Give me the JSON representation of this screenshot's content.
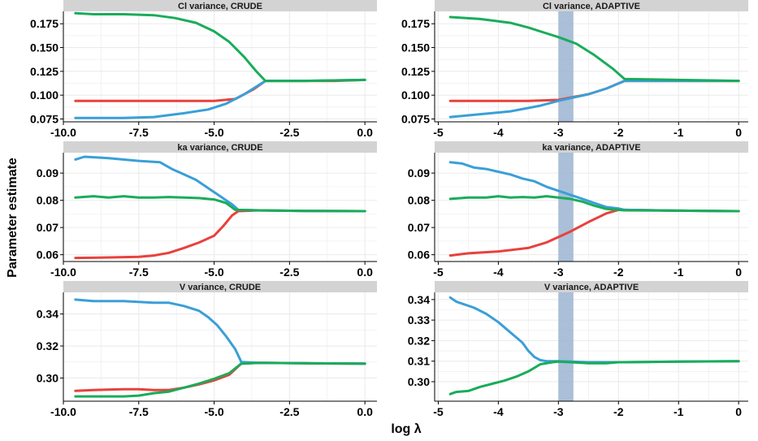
{
  "figure": {
    "xlabel": "log λ",
    "ylabel": "Parameter estimate"
  },
  "colors": {
    "red": "#e8413c",
    "blue": "#3a9fd8",
    "green": "#1aac5a",
    "band": "#9bb4d1",
    "strip": "#d3d3d3",
    "grid": "#ebebeb"
  },
  "chart_data": [
    {
      "type": "line",
      "title": "Cl variance, CRUDE",
      "xlim": [
        -10,
        0.4
      ],
      "ylim": [
        0.072,
        0.188
      ],
      "xticks": [
        -10,
        -7.5,
        -5,
        -2.5,
        0
      ],
      "xtick_labels": [
        "-10.0",
        "-7.5",
        "-5.0",
        "-2.5",
        "0.0"
      ],
      "yticks": [
        0.075,
        0.1,
        0.125,
        0.15,
        0.175
      ],
      "ytick_labels": [
        "0.075",
        "0.100",
        "0.125",
        "0.150",
        "0.175"
      ],
      "highlight": null,
      "series": [
        {
          "color": "red",
          "x": [
            -9.6,
            -8,
            -6.5,
            -5,
            -4.3,
            -3.7,
            -3.3,
            -2,
            -1,
            0
          ],
          "y": [
            0.094,
            0.094,
            0.094,
            0.094,
            0.096,
            0.106,
            0.115,
            0.115,
            0.115,
            0.116
          ]
        },
        {
          "color": "blue",
          "x": [
            -9.6,
            -8,
            -7,
            -6,
            -5.2,
            -4.6,
            -4,
            -3.6,
            -3.3,
            -2,
            0
          ],
          "y": [
            0.076,
            0.076,
            0.077,
            0.081,
            0.085,
            0.091,
            0.101,
            0.109,
            0.115,
            0.115,
            0.116
          ]
        },
        {
          "color": "green",
          "x": [
            -9.6,
            -9,
            -8,
            -7,
            -6.3,
            -5.6,
            -5,
            -4.5,
            -4,
            -3.6,
            -3.3,
            -2,
            0
          ],
          "y": [
            0.186,
            0.185,
            0.185,
            0.184,
            0.181,
            0.176,
            0.167,
            0.156,
            0.14,
            0.125,
            0.115,
            0.115,
            0.116
          ]
        }
      ]
    },
    {
      "type": "line",
      "title": "Cl variance, ADAPTIVE",
      "xlim": [
        -5.06,
        0.16
      ],
      "ylim": [
        0.072,
        0.188
      ],
      "xticks": [
        -5,
        -4,
        -3,
        -2,
        -1,
        0
      ],
      "xtick_labels": [
        "-5",
        "-4",
        "-3",
        "-2",
        "-1",
        "0"
      ],
      "yticks": [
        0.075,
        0.1,
        0.125,
        0.15,
        0.175
      ],
      "ytick_labels": [
        "0.075",
        "0.100",
        "0.125",
        "0.150",
        "0.175"
      ],
      "highlight": [
        -3,
        -2.75
      ],
      "series": [
        {
          "color": "red",
          "x": [
            -4.8,
            -4,
            -3.5,
            -3,
            -2.5,
            -2.2,
            -1.9,
            -1,
            0
          ],
          "y": [
            0.094,
            0.094,
            0.094,
            0.095,
            0.101,
            0.107,
            0.115,
            0.115,
            0.115
          ]
        },
        {
          "color": "blue",
          "x": [
            -4.8,
            -4.3,
            -3.8,
            -3.3,
            -3,
            -2.5,
            -2.2,
            -1.9,
            -1,
            0
          ],
          "y": [
            0.077,
            0.08,
            0.083,
            0.089,
            0.094,
            0.101,
            0.107,
            0.115,
            0.115,
            0.115
          ]
        },
        {
          "color": "green",
          "x": [
            -4.8,
            -4.3,
            -3.8,
            -3.5,
            -3.2,
            -3,
            -2.7,
            -2.4,
            -2.1,
            -1.9,
            -1,
            0
          ],
          "y": [
            0.182,
            0.18,
            0.176,
            0.171,
            0.165,
            0.161,
            0.154,
            0.142,
            0.128,
            0.117,
            0.116,
            0.115
          ]
        }
      ]
    },
    {
      "type": "line",
      "title": "ka variance, CRUDE",
      "xlim": [
        -10,
        0.4
      ],
      "ylim": [
        0.0575,
        0.0975
      ],
      "xticks": [
        -10,
        -7.5,
        -5,
        -2.5,
        0
      ],
      "xtick_labels": [
        "-10.0",
        "-7.5",
        "-5.0",
        "-2.5",
        "0.0"
      ],
      "yticks": [
        0.06,
        0.07,
        0.08,
        0.09
      ],
      "ytick_labels": [
        "0.06",
        "0.07",
        "0.08",
        "0.09"
      ],
      "highlight": null,
      "series": [
        {
          "color": "red",
          "x": [
            -9.6,
            -8.5,
            -7.5,
            -7,
            -6.5,
            -6,
            -5.5,
            -5,
            -4.7,
            -4.4,
            -4.2,
            -3.5,
            -2,
            0
          ],
          "y": [
            0.0588,
            0.059,
            0.0592,
            0.0597,
            0.0607,
            0.0625,
            0.0645,
            0.067,
            0.0705,
            0.0745,
            0.076,
            0.0763,
            0.0761,
            0.076
          ]
        },
        {
          "color": "blue",
          "x": [
            -9.6,
            -9.3,
            -8.5,
            -7.5,
            -6.8,
            -6.4,
            -6,
            -5.6,
            -5.2,
            -4.8,
            -4.4,
            -4.2,
            -3.5,
            -2,
            0
          ],
          "y": [
            0.095,
            0.096,
            0.0955,
            0.0945,
            0.094,
            0.0915,
            0.0895,
            0.0875,
            0.0845,
            0.0815,
            0.0785,
            0.0765,
            0.0763,
            0.0761,
            0.076
          ]
        },
        {
          "color": "green",
          "x": [
            -9.6,
            -9,
            -8.5,
            -8,
            -7.5,
            -7,
            -6.5,
            -6,
            -5.5,
            -5,
            -4.6,
            -4.3,
            -3.5,
            -2,
            0
          ],
          "y": [
            0.081,
            0.0815,
            0.081,
            0.0815,
            0.081,
            0.081,
            0.0812,
            0.081,
            0.0808,
            0.0803,
            0.079,
            0.0765,
            0.0763,
            0.0761,
            0.076
          ]
        }
      ]
    },
    {
      "type": "line",
      "title": "ka variance, ADAPTIVE",
      "xlim": [
        -5.06,
        0.16
      ],
      "ylim": [
        0.0575,
        0.0975
      ],
      "xticks": [
        -5,
        -4,
        -3,
        -2,
        -1,
        0
      ],
      "xtick_labels": [
        "-5",
        "-4",
        "-3",
        "-2",
        "-1",
        "0"
      ],
      "yticks": [
        0.06,
        0.07,
        0.08,
        0.09
      ],
      "ytick_labels": [
        "0.06",
        "0.07",
        "0.08",
        "0.09"
      ],
      "highlight": [
        -3,
        -2.75
      ],
      "series": [
        {
          "color": "red",
          "x": [
            -4.8,
            -4.5,
            -4,
            -3.5,
            -3.2,
            -3,
            -2.8,
            -2.5,
            -2.2,
            -2,
            -1.9,
            -1,
            0
          ],
          "y": [
            0.0597,
            0.0605,
            0.0612,
            0.0625,
            0.0645,
            0.0665,
            0.0685,
            0.072,
            0.0752,
            0.0765,
            0.0765,
            0.0762,
            0.076
          ]
        },
        {
          "color": "blue",
          "x": [
            -4.8,
            -4.6,
            -4.4,
            -4.2,
            -4,
            -3.8,
            -3.6,
            -3.4,
            -3.2,
            -3,
            -2.8,
            -2.6,
            -2.4,
            -2.2,
            -2,
            -1.9,
            -1,
            0
          ],
          "y": [
            0.094,
            0.0935,
            0.092,
            0.0915,
            0.0905,
            0.0895,
            0.088,
            0.087,
            0.085,
            0.0835,
            0.082,
            0.0805,
            0.079,
            0.0775,
            0.077,
            0.0765,
            0.0762,
            0.076
          ]
        },
        {
          "color": "green",
          "x": [
            -4.8,
            -4.5,
            -4.2,
            -4,
            -3.8,
            -3.6,
            -3.4,
            -3.2,
            -3,
            -2.8,
            -2.6,
            -2.4,
            -2.2,
            -2,
            -1.9,
            -1,
            0
          ],
          "y": [
            0.0805,
            0.081,
            0.081,
            0.0815,
            0.081,
            0.0812,
            0.081,
            0.0815,
            0.081,
            0.0805,
            0.0795,
            0.078,
            0.0768,
            0.0765,
            0.0763,
            0.0762,
            0.076
          ]
        }
      ]
    },
    {
      "type": "line",
      "title": "V variance, CRUDE",
      "xlim": [
        -10,
        0.4
      ],
      "ylim": [
        0.2855,
        0.3535
      ],
      "xticks": [
        -10,
        -7.5,
        -5,
        -2.5,
        0
      ],
      "xtick_labels": [
        "-10.0",
        "-7.5",
        "-5.0",
        "-2.5",
        "0.0"
      ],
      "yticks": [
        0.3,
        0.32,
        0.34
      ],
      "ytick_labels": [
        "0.30",
        "0.32",
        "0.34"
      ],
      "highlight": null,
      "series": [
        {
          "color": "red",
          "x": [
            -9.6,
            -9,
            -8,
            -7.5,
            -7,
            -6.5,
            -6,
            -5.5,
            -5,
            -4.5,
            -4.1,
            -3.5,
            -2,
            0
          ],
          "y": [
            0.292,
            0.2925,
            0.293,
            0.293,
            0.2925,
            0.2925,
            0.294,
            0.296,
            0.2985,
            0.302,
            0.309,
            0.3095,
            0.3092,
            0.309
          ]
        },
        {
          "color": "blue",
          "x": [
            -9.6,
            -9,
            -8,
            -7,
            -6.5,
            -6,
            -5.5,
            -5.2,
            -4.9,
            -4.6,
            -4.3,
            -4.1,
            -3.5,
            -2,
            0
          ],
          "y": [
            0.349,
            0.348,
            0.348,
            0.347,
            0.347,
            0.345,
            0.342,
            0.338,
            0.333,
            0.326,
            0.318,
            0.31,
            0.3095,
            0.3092,
            0.309
          ]
        },
        {
          "color": "green",
          "x": [
            -9.6,
            -9,
            -8.5,
            -8,
            -7.5,
            -7,
            -6.5,
            -6,
            -5.5,
            -5,
            -4.5,
            -4.1,
            -3.5,
            -2,
            0
          ],
          "y": [
            0.2885,
            0.2885,
            0.2885,
            0.2885,
            0.289,
            0.2905,
            0.2915,
            0.294,
            0.2965,
            0.2995,
            0.303,
            0.309,
            0.3095,
            0.3092,
            0.309
          ]
        }
      ]
    },
    {
      "type": "line",
      "title": "V variance, ADAPTIVE",
      "xlim": [
        -5.06,
        0.16
      ],
      "ylim": [
        0.2905,
        0.3435
      ],
      "xticks": [
        -5,
        -4,
        -3,
        -2,
        -1,
        0
      ],
      "xtick_labels": [
        "-5",
        "-4",
        "-3",
        "-2",
        "-1",
        "0"
      ],
      "yticks": [
        0.3,
        0.31,
        0.32,
        0.33,
        0.34
      ],
      "ytick_labels": [
        "0.30",
        "0.31",
        "0.32",
        "0.33",
        "0.34"
      ],
      "highlight": [
        -3,
        -2.75
      ],
      "series": [
        {
          "color": "blue",
          "x": [
            -4.8,
            -4.7,
            -4.6,
            -4.4,
            -4.2,
            -4,
            -3.8,
            -3.6,
            -3.5,
            -3.4,
            -3.3,
            -3.2,
            -3,
            -2.5,
            -2,
            -1.9,
            -1,
            0
          ],
          "y": [
            0.341,
            0.339,
            0.338,
            0.336,
            0.333,
            0.329,
            0.324,
            0.319,
            0.315,
            0.312,
            0.3105,
            0.31,
            0.31,
            0.3095,
            0.3095,
            0.3095,
            0.3098,
            0.31
          ]
        },
        {
          "color": "green",
          "x": [
            -4.8,
            -4.7,
            -4.5,
            -4.3,
            -4.1,
            -3.9,
            -3.7,
            -3.5,
            -3.3,
            -3.1,
            -3,
            -2.8,
            -2.5,
            -2.2,
            -2,
            -1.9,
            -1,
            0
          ],
          "y": [
            0.294,
            0.295,
            0.2955,
            0.2975,
            0.299,
            0.3005,
            0.3025,
            0.305,
            0.3085,
            0.3095,
            0.3098,
            0.3095,
            0.309,
            0.309,
            0.3095,
            0.3095,
            0.3098,
            0.31
          ]
        }
      ]
    }
  ]
}
